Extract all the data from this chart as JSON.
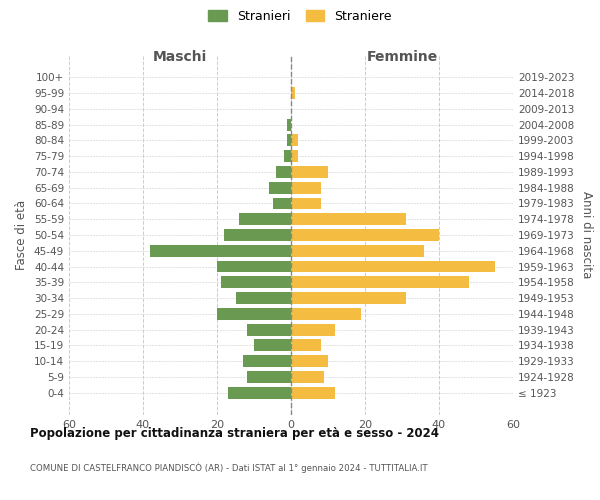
{
  "age_groups": [
    "100+",
    "95-99",
    "90-94",
    "85-89",
    "80-84",
    "75-79",
    "70-74",
    "65-69",
    "60-64",
    "55-59",
    "50-54",
    "45-49",
    "40-44",
    "35-39",
    "30-34",
    "25-29",
    "20-24",
    "15-19",
    "10-14",
    "5-9",
    "0-4"
  ],
  "birth_years": [
    "≤ 1923",
    "1924-1928",
    "1929-1933",
    "1934-1938",
    "1939-1943",
    "1944-1948",
    "1949-1953",
    "1954-1958",
    "1959-1963",
    "1964-1968",
    "1969-1973",
    "1974-1978",
    "1979-1983",
    "1984-1988",
    "1989-1993",
    "1994-1998",
    "1999-2003",
    "2004-2008",
    "2009-2013",
    "2014-2018",
    "2019-2023"
  ],
  "males": [
    0,
    0,
    0,
    1,
    1,
    2,
    4,
    6,
    5,
    14,
    18,
    38,
    20,
    19,
    15,
    20,
    12,
    10,
    13,
    12,
    17
  ],
  "females": [
    0,
    1,
    0,
    0,
    2,
    2,
    10,
    8,
    8,
    31,
    40,
    36,
    55,
    48,
    31,
    19,
    12,
    8,
    10,
    9,
    12
  ],
  "male_color": "#6a9a52",
  "female_color": "#f5bc42",
  "background_color": "#ffffff",
  "grid_color": "#cccccc",
  "title": "Popolazione per cittadinanza straniera per età e sesso - 2024",
  "subtitle": "COMUNE DI CASTELFRANCO PIANDISCÒ (AR) - Dati ISTAT al 1° gennaio 2024 - TUTTITALIA.IT",
  "ylabel_left": "Fasce di età",
  "ylabel_right": "Anni di nascita",
  "xlabel_left": "Maschi",
  "xlabel_right": "Femmine",
  "legend_male": "Stranieri",
  "legend_female": "Straniere",
  "xlim": 60
}
